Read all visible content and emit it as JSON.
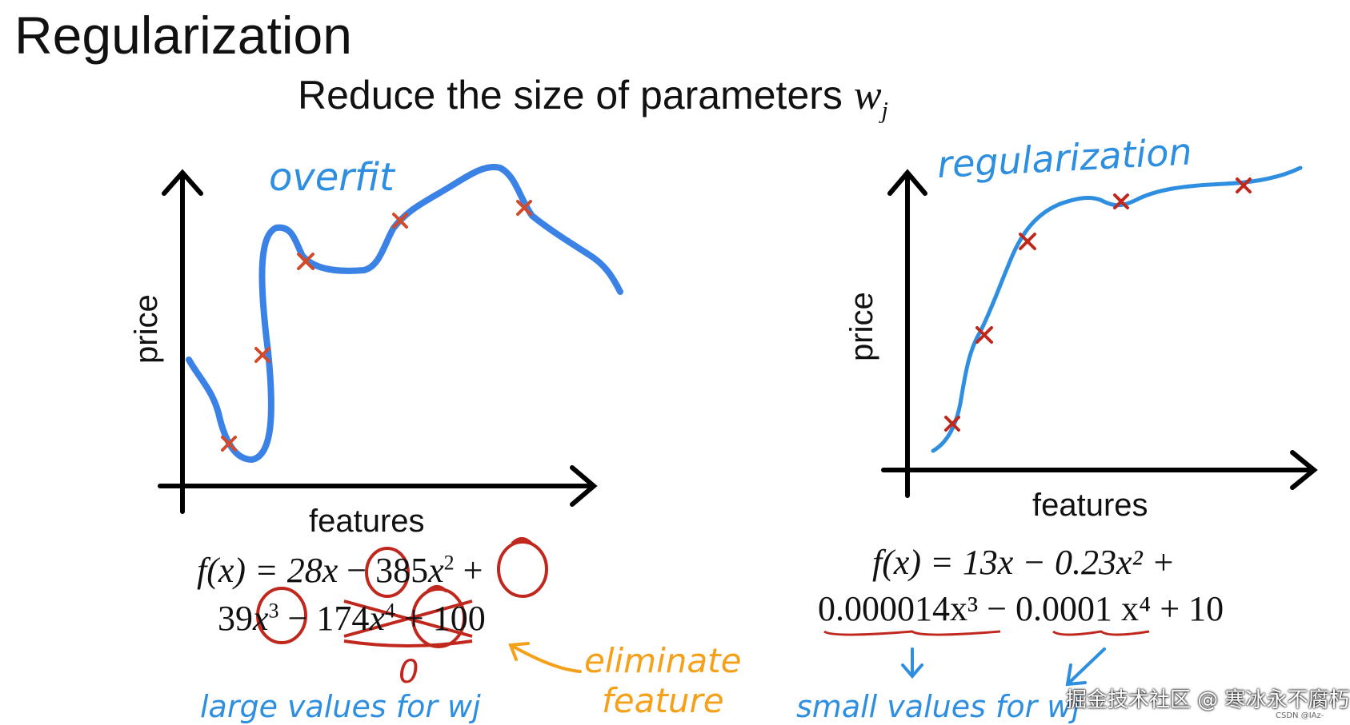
{
  "title": "Regularization",
  "subtitle": {
    "text": "Reduce the size of parameters",
    "symbol": "w",
    "subscript": "j"
  },
  "left_panel": {
    "annotation": "overfit",
    "xlabel": "features",
    "ylabel": "price",
    "equation_line1": {
      "a": "f(x) = 28",
      "b": "x",
      "c": " − 385",
      "d": "x",
      "d_exp": "2",
      "e": " +"
    },
    "equation_line2": {
      "a": "39",
      "b": "x",
      "b_exp": "3",
      "c": " − ",
      "d": "174",
      "e": "x",
      "e_exp": "4",
      "f": " + 100"
    },
    "zero_note": "0",
    "note_eliminate": "eliminate",
    "note_feature": "feature",
    "note_large": "large values for wj"
  },
  "right_panel": {
    "annotation": "regularization",
    "xlabel": "features",
    "ylabel": "price",
    "equation_line1": "f(x) = 13x − 0.23x² +",
    "equation_line2": "0.000014x³ − 0.0001 x⁴ + 10",
    "note_small": "small values for wj"
  },
  "watermark": "掘金技术社区 @ 寒冰永不腐朽",
  "watermark_small": "CSDN @IAz-",
  "colors": {
    "curve_blue": "#3b82e6",
    "handwriting_blue": "#2e8ee0",
    "cross_red": "#d24a2a",
    "circle_red": "#c0281e",
    "note_orange": "#f5a019"
  }
}
